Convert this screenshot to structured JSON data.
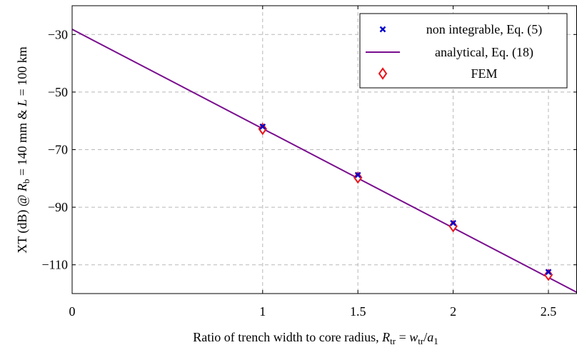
{
  "chart_data": {
    "type": "line",
    "xlim": [
      0,
      2.65
    ],
    "ylim": [
      -120,
      -20
    ],
    "x_ticks": [
      {
        "value": 0,
        "label": "0"
      },
      {
        "value": 1,
        "label": "1"
      },
      {
        "value": 1.5,
        "label": "1.5"
      },
      {
        "value": 2,
        "label": "2"
      },
      {
        "value": 2.5,
        "label": "2.5"
      }
    ],
    "y_ticks": [
      {
        "value": -30,
        "label": "−30"
      },
      {
        "value": -50,
        "label": "−50"
      },
      {
        "value": -70,
        "label": "−70"
      },
      {
        "value": -90,
        "label": "−90"
      },
      {
        "value": -110,
        "label": "−110"
      }
    ],
    "grid": true,
    "legend_position": "top-right",
    "series": [
      {
        "name": "non integrable, Eq. (5)",
        "kind": "scatter",
        "marker": "x",
        "color": "#0000cc",
        "x": [
          1,
          1.5,
          2,
          2.5
        ],
        "y": [
          -62,
          -78.8,
          -95.5,
          -112.5
        ]
      },
      {
        "name": "analytical, Eq. (18)",
        "kind": "line",
        "color": "#7a0e8f",
        "x": [
          0,
          2.65
        ],
        "y": [
          -28.2,
          -119.6
        ]
      },
      {
        "name": "FEM",
        "kind": "scatter",
        "marker": "diamond",
        "color": "#e8141a",
        "x": [
          1,
          1.5,
          2,
          2.5
        ],
        "y": [
          -62.8,
          -79.7,
          -96.6,
          -113.5
        ]
      }
    ]
  }
}
